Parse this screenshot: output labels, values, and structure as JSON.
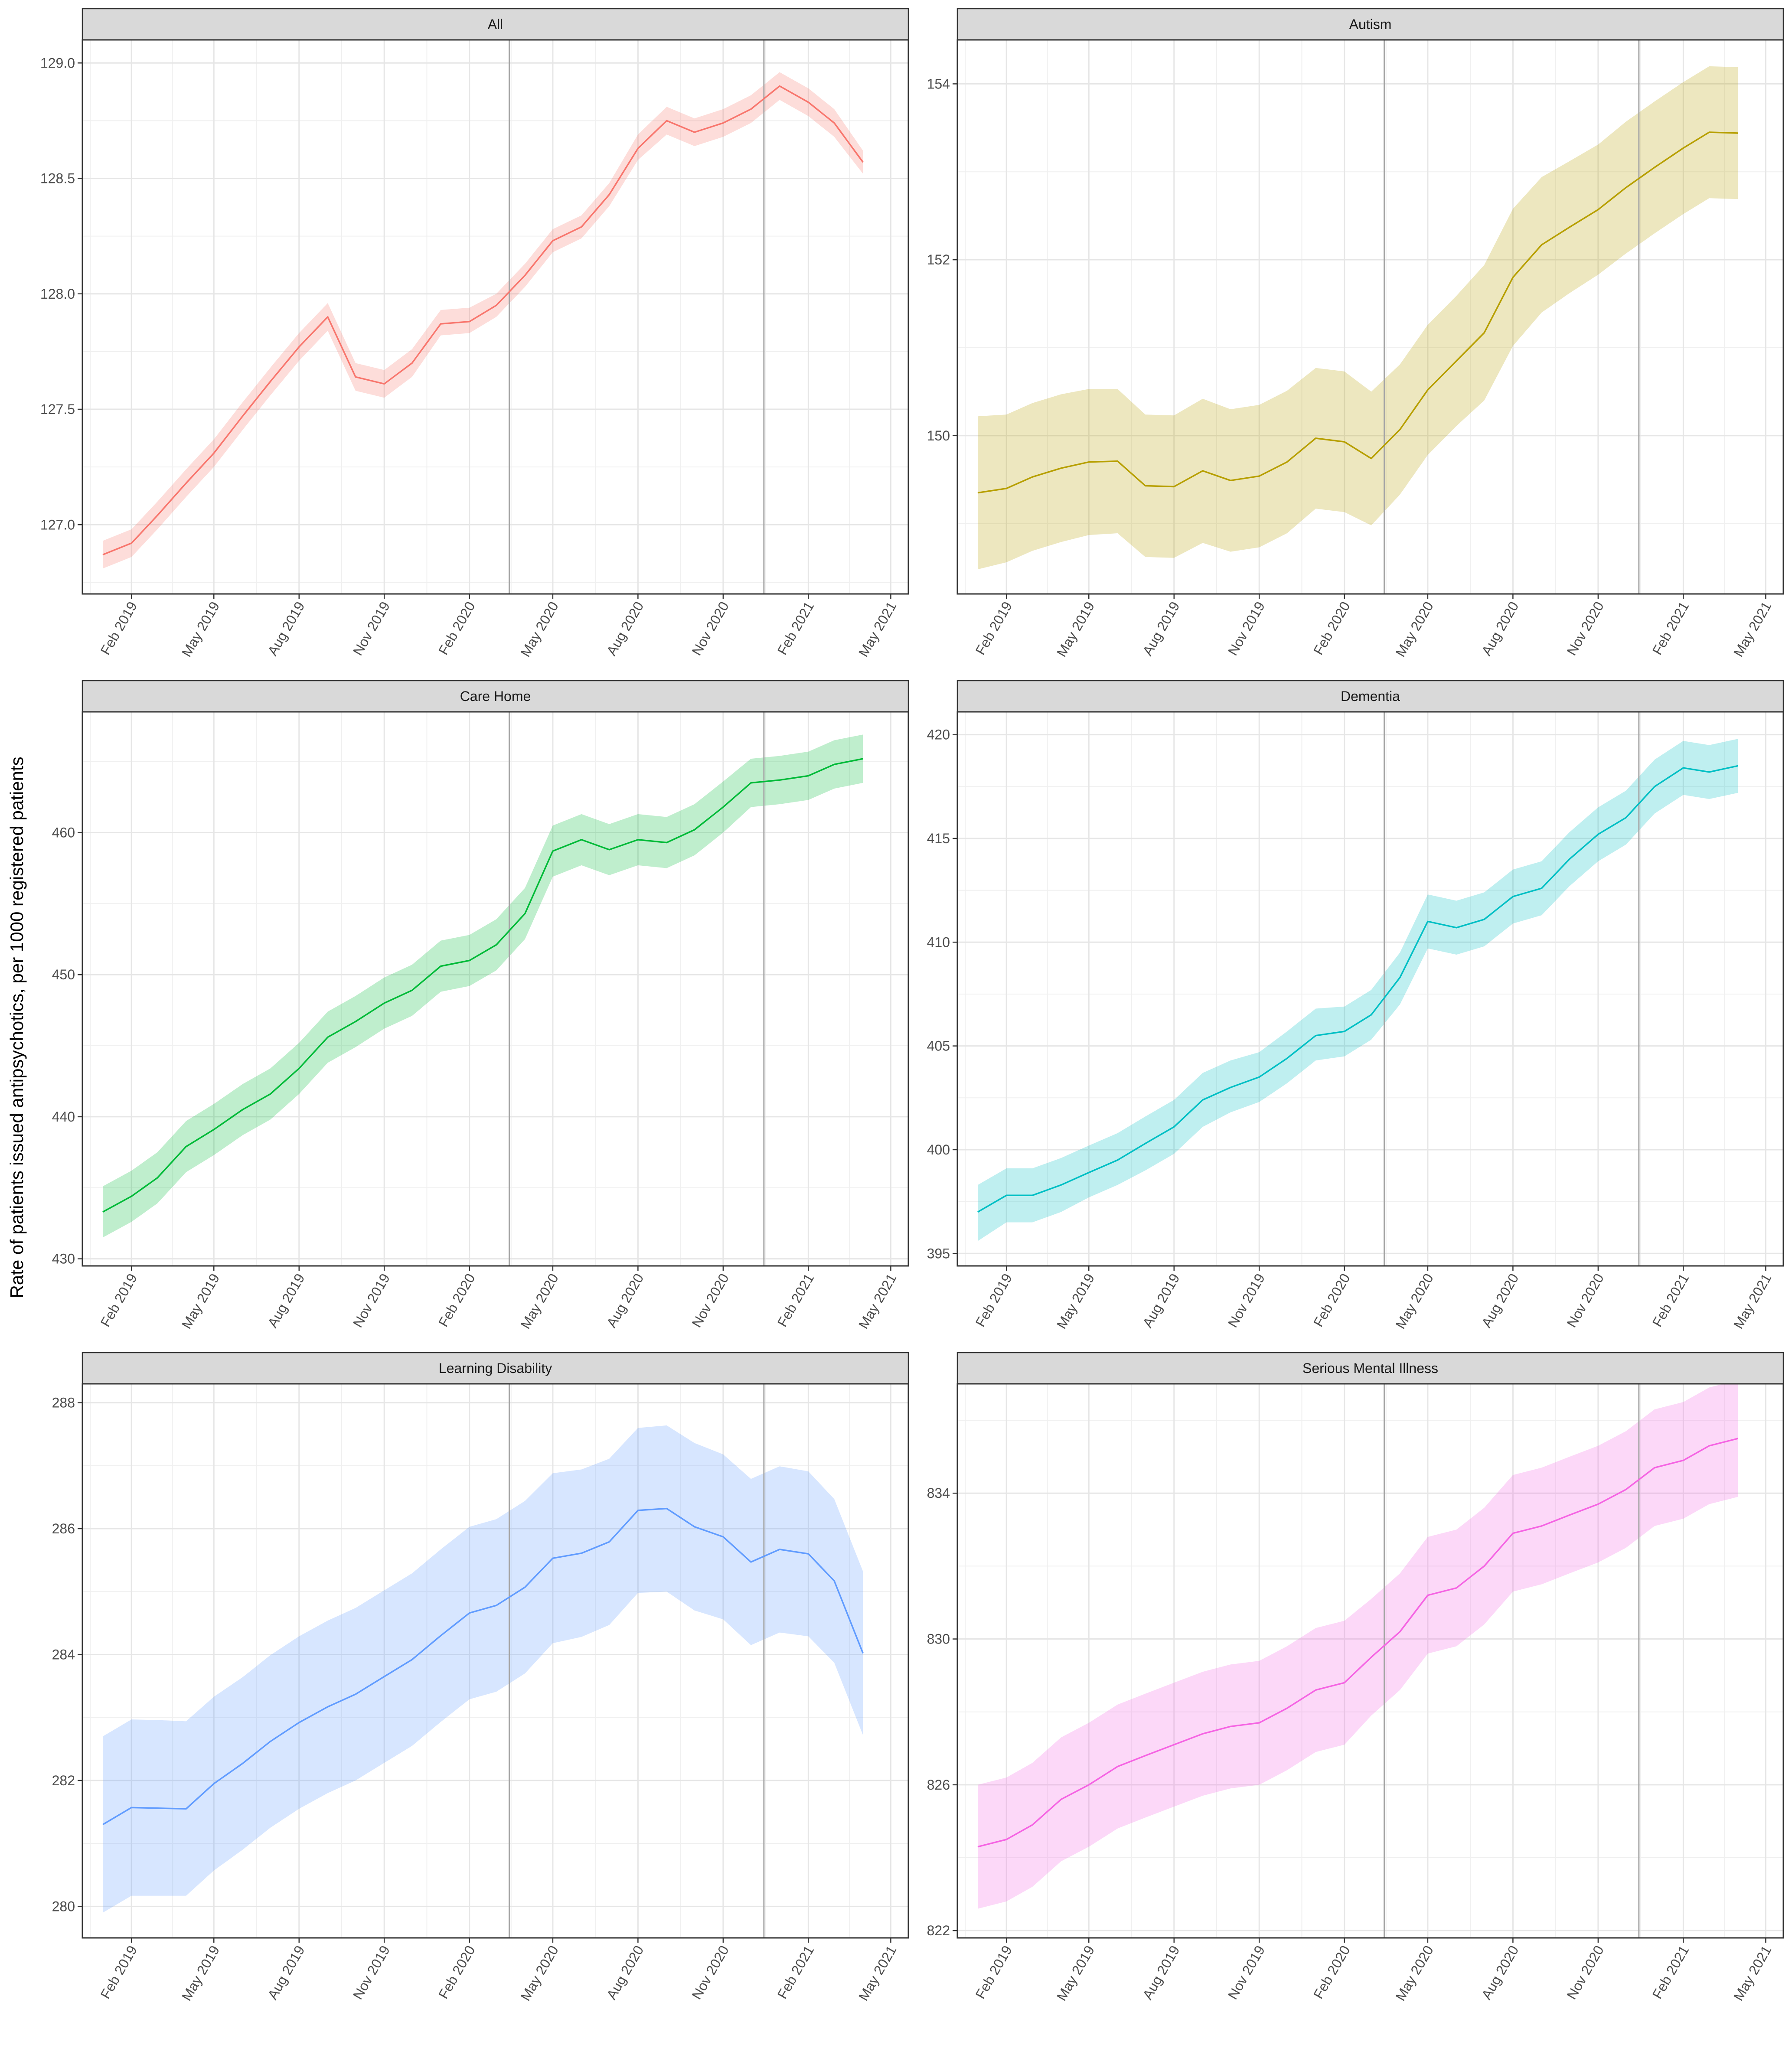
{
  "ylabel": "Rate of patients issued antipsychotics, per 1000 registered patients",
  "colors": {
    "All": "#F8766D",
    "Autism": "#B79F00",
    "Care Home": "#00BA38",
    "Dementia": "#00BFC4",
    "Learning Disability": "#619CFF",
    "Serious Mental Illness": "#F564E3"
  },
  "x_ticks": [
    "Feb 2019",
    "May 2019",
    "Aug 2019",
    "Nov 2019",
    "Feb 2020",
    "May 2020",
    "Aug 2020",
    "Nov 2020",
    "Feb 2021",
    "May 2021"
  ],
  "x_tick_dates": [
    "2019-02-01",
    "2019-05-01",
    "2019-08-01",
    "2019-11-01",
    "2020-02-01",
    "2020-05-01",
    "2020-08-01",
    "2020-11-01",
    "2021-02-01",
    "2021-05-01"
  ],
  "vlines": [
    "2020-03-15",
    "2020-12-15"
  ],
  "chart_data": [
    {
      "type": "line",
      "title": "All",
      "ylim": [
        126.7,
        129.1
      ],
      "yticks": [
        127.0,
        127.5,
        128.0,
        128.5,
        129.0
      ],
      "x": [
        "2019-01-01",
        "2019-02-01",
        "2019-03-01",
        "2019-04-01",
        "2019-05-01",
        "2019-06-01",
        "2019-07-01",
        "2019-08-01",
        "2019-09-01",
        "2019-10-01",
        "2019-11-01",
        "2019-12-01",
        "2020-01-01",
        "2020-02-01",
        "2020-03-01",
        "2020-04-01",
        "2020-05-01",
        "2020-06-01",
        "2020-07-01",
        "2020-08-01",
        "2020-09-01",
        "2020-10-01",
        "2020-11-01",
        "2020-12-01",
        "2021-01-01",
        "2021-02-01",
        "2021-03-01",
        "2021-04-01"
      ],
      "values": [
        126.87,
        126.92,
        127.04,
        127.18,
        127.31,
        127.47,
        127.62,
        127.77,
        127.9,
        127.64,
        127.61,
        127.7,
        127.87,
        127.88,
        127.95,
        128.08,
        128.23,
        128.29,
        128.43,
        128.63,
        128.75,
        128.7,
        128.74,
        128.8,
        128.9,
        128.83,
        128.74,
        128.57
      ],
      "lower": [
        126.81,
        126.86,
        126.98,
        127.12,
        127.25,
        127.41,
        127.56,
        127.71,
        127.84,
        127.58,
        127.55,
        127.64,
        127.82,
        127.83,
        127.9,
        128.03,
        128.18,
        128.24,
        128.38,
        128.58,
        128.69,
        128.64,
        128.68,
        128.74,
        128.84,
        128.77,
        128.68,
        128.52
      ],
      "upper": [
        126.93,
        126.98,
        127.1,
        127.24,
        127.37,
        127.53,
        127.68,
        127.83,
        127.96,
        127.7,
        127.67,
        127.76,
        127.93,
        127.94,
        128.0,
        128.13,
        128.28,
        128.34,
        128.48,
        128.69,
        128.81,
        128.76,
        128.8,
        128.86,
        128.96,
        128.89,
        128.8,
        128.62
      ]
    },
    {
      "type": "line",
      "title": "Autism",
      "ylim": [
        148.2,
        154.5
      ],
      "yticks": [
        150,
        152,
        154
      ],
      "x": [
        "2019-01-01",
        "2019-02-01",
        "2019-03-01",
        "2019-04-01",
        "2019-05-01",
        "2019-06-01",
        "2019-07-01",
        "2019-08-01",
        "2019-09-01",
        "2019-10-01",
        "2019-11-01",
        "2019-12-01",
        "2020-01-01",
        "2020-02-01",
        "2020-03-01",
        "2020-04-01",
        "2020-05-01",
        "2020-06-01",
        "2020-07-01",
        "2020-08-01",
        "2020-09-01",
        "2020-10-01",
        "2020-11-01",
        "2020-12-01",
        "2021-01-01",
        "2021-02-01",
        "2021-03-01",
        "2021-04-01"
      ],
      "values": [
        149.35,
        149.4,
        149.53,
        149.63,
        149.7,
        149.71,
        149.43,
        149.42,
        149.6,
        149.49,
        149.54,
        149.7,
        149.97,
        149.93,
        149.74,
        150.07,
        150.52,
        150.85,
        151.17,
        151.8,
        152.17,
        152.37,
        152.57,
        152.82,
        153.05,
        153.27,
        153.45,
        153.44
      ],
      "lower": [
        148.48,
        148.56,
        148.69,
        148.79,
        148.87,
        148.89,
        148.62,
        148.61,
        148.78,
        148.68,
        148.73,
        148.89,
        149.17,
        149.13,
        148.98,
        149.33,
        149.78,
        150.11,
        150.4,
        151.02,
        151.4,
        151.62,
        151.83,
        152.07,
        152.3,
        152.52,
        152.7,
        152.69
      ],
      "upper": [
        150.22,
        150.24,
        150.37,
        150.47,
        150.53,
        150.53,
        150.24,
        150.23,
        150.42,
        150.3,
        150.35,
        150.51,
        150.77,
        150.73,
        150.5,
        150.81,
        151.26,
        151.59,
        151.94,
        152.58,
        152.94,
        153.12,
        153.31,
        153.57,
        153.8,
        154.02,
        154.2,
        154.19
      ]
    },
    {
      "type": "line",
      "title": "Care Home",
      "ylim": [
        429.5,
        468.5
      ],
      "yticks": [
        430,
        440,
        450,
        460
      ],
      "x": [
        "2019-01-01",
        "2019-02-01",
        "2019-03-01",
        "2019-04-01",
        "2019-05-01",
        "2019-06-01",
        "2019-07-01",
        "2019-08-01",
        "2019-09-01",
        "2019-10-01",
        "2019-11-01",
        "2019-12-01",
        "2020-01-01",
        "2020-02-01",
        "2020-03-01",
        "2020-04-01",
        "2020-05-01",
        "2020-06-01",
        "2020-07-01",
        "2020-08-01",
        "2020-09-01",
        "2020-10-01",
        "2020-11-01",
        "2020-12-01",
        "2021-01-01",
        "2021-02-01",
        "2021-03-01",
        "2021-04-01"
      ],
      "values": [
        433.3,
        434.4,
        435.7,
        437.9,
        439.1,
        440.5,
        441.6,
        443.4,
        445.6,
        446.7,
        448.0,
        448.9,
        450.6,
        451.0,
        452.1,
        454.3,
        458.7,
        459.5,
        458.8,
        459.5,
        459.3,
        460.2,
        461.8,
        463.5,
        463.7,
        464.0,
        464.8,
        465.2
      ],
      "lower": [
        431.5,
        432.6,
        433.9,
        436.1,
        437.3,
        438.7,
        439.8,
        441.6,
        443.8,
        444.9,
        446.2,
        447.1,
        448.8,
        449.2,
        450.3,
        452.5,
        456.9,
        457.7,
        457.0,
        457.7,
        457.5,
        458.4,
        460.0,
        461.8,
        462.0,
        462.3,
        463.1,
        463.5
      ],
      "upper": [
        435.1,
        436.2,
        437.5,
        439.7,
        440.9,
        442.3,
        443.4,
        445.2,
        447.4,
        448.5,
        449.8,
        450.7,
        452.4,
        452.8,
        453.9,
        456.1,
        460.5,
        461.3,
        460.6,
        461.3,
        461.1,
        462.0,
        463.6,
        465.2,
        465.4,
        465.7,
        466.5,
        466.9
      ]
    },
    {
      "type": "line",
      "title": "Dementia",
      "ylim": [
        394.4,
        421.1
      ],
      "yticks": [
        395,
        400,
        405,
        410,
        415,
        420
      ],
      "x": [
        "2019-01-01",
        "2019-02-01",
        "2019-03-01",
        "2019-04-01",
        "2019-05-01",
        "2019-06-01",
        "2019-07-01",
        "2019-08-01",
        "2019-09-01",
        "2019-10-01",
        "2019-11-01",
        "2019-12-01",
        "2020-01-01",
        "2020-02-01",
        "2020-03-01",
        "2020-04-01",
        "2020-05-01",
        "2020-06-01",
        "2020-07-01",
        "2020-08-01",
        "2020-09-01",
        "2020-10-01",
        "2020-11-01",
        "2020-12-01",
        "2021-01-01",
        "2021-02-01",
        "2021-03-01",
        "2021-04-01"
      ],
      "values": [
        397.0,
        397.8,
        397.8,
        398.3,
        398.9,
        399.5,
        400.3,
        401.1,
        402.4,
        403.0,
        403.5,
        404.4,
        405.5,
        405.7,
        406.5,
        408.3,
        411.0,
        410.7,
        411.1,
        412.2,
        412.6,
        414.0,
        415.2,
        416.0,
        417.5,
        418.4,
        418.2,
        418.5
      ],
      "lower": [
        395.6,
        396.5,
        396.5,
        397.0,
        397.7,
        398.3,
        399.0,
        399.8,
        401.1,
        401.8,
        402.3,
        403.2,
        404.3,
        404.5,
        405.3,
        407.0,
        409.7,
        409.4,
        409.8,
        410.9,
        411.3,
        412.7,
        413.9,
        414.7,
        416.2,
        417.1,
        416.9,
        417.2
      ],
      "upper": [
        398.3,
        399.1,
        399.1,
        399.6,
        400.2,
        400.8,
        401.6,
        402.4,
        403.7,
        404.3,
        404.7,
        405.7,
        406.8,
        406.9,
        407.7,
        409.5,
        412.3,
        412.0,
        412.4,
        413.5,
        413.9,
        415.3,
        416.5,
        417.3,
        418.8,
        419.7,
        419.5,
        419.8
      ]
    },
    {
      "type": "line",
      "title": "Learning Disability",
      "ylim": [
        279.5,
        288.3
      ],
      "yticks": [
        280,
        282,
        284,
        286,
        288
      ],
      "x": [
        "2019-01-01",
        "2019-02-01",
        "2019-03-01",
        "2019-04-01",
        "2019-05-01",
        "2019-06-01",
        "2019-07-01",
        "2019-08-01",
        "2019-09-01",
        "2019-10-01",
        "2019-11-01",
        "2019-12-01",
        "2020-01-01",
        "2020-02-01",
        "2020-03-01",
        "2020-04-01",
        "2020-05-01",
        "2020-06-01",
        "2020-07-01",
        "2020-08-01",
        "2020-09-01",
        "2020-10-01",
        "2020-11-01",
        "2020-12-01",
        "2021-01-01",
        "2021-02-01",
        "2021-03-01",
        "2021-04-01"
      ],
      "values": [
        281.3,
        281.57,
        281.56,
        281.55,
        281.95,
        282.27,
        282.62,
        282.92,
        283.17,
        283.37,
        283.65,
        283.92,
        284.3,
        284.66,
        284.78,
        285.07,
        285.53,
        285.61,
        285.79,
        286.29,
        286.32,
        286.03,
        285.87,
        285.47,
        285.67,
        285.6,
        285.17,
        284.02
      ],
      "lower": [
        279.9,
        280.17,
        280.17,
        280.17,
        280.57,
        280.9,
        281.25,
        281.55,
        281.8,
        282.0,
        282.28,
        282.55,
        282.93,
        283.29,
        283.41,
        283.7,
        284.18,
        284.28,
        284.47,
        284.98,
        285.0,
        284.7,
        284.56,
        284.15,
        284.35,
        284.29,
        283.87,
        282.72
      ],
      "upper": [
        282.7,
        282.97,
        282.96,
        282.94,
        283.33,
        283.64,
        283.99,
        284.29,
        284.54,
        284.74,
        285.02,
        285.29,
        285.67,
        286.03,
        286.15,
        286.44,
        286.88,
        286.94,
        287.11,
        287.6,
        287.64,
        287.36,
        287.18,
        286.79,
        286.99,
        286.91,
        286.47,
        285.32
      ]
    },
    {
      "type": "line",
      "title": "Serious Mental Illness",
      "ylim": [
        821.8,
        837.0
      ],
      "yticks": [
        822,
        826,
        830,
        834
      ],
      "x": [
        "2019-01-01",
        "2019-02-01",
        "2019-03-01",
        "2019-04-01",
        "2019-05-01",
        "2019-06-01",
        "2019-07-01",
        "2019-08-01",
        "2019-09-01",
        "2019-10-01",
        "2019-11-01",
        "2019-12-01",
        "2020-01-01",
        "2020-02-01",
        "2020-03-01",
        "2020-04-01",
        "2020-05-01",
        "2020-06-01",
        "2020-07-01",
        "2020-08-01",
        "2020-09-01",
        "2020-10-01",
        "2020-11-01",
        "2020-12-01",
        "2021-01-01",
        "2021-02-01",
        "2021-03-01",
        "2021-04-01"
      ],
      "values": [
        824.3,
        824.5,
        824.9,
        825.6,
        826.0,
        826.5,
        826.8,
        827.1,
        827.4,
        827.6,
        827.7,
        828.1,
        828.6,
        828.8,
        829.5,
        830.2,
        831.2,
        831.4,
        832.0,
        832.9,
        833.1,
        833.4,
        833.7,
        834.1,
        834.7,
        834.9,
        835.3,
        835.5
      ],
      "lower": [
        822.6,
        822.8,
        823.2,
        823.9,
        824.3,
        824.8,
        825.1,
        825.4,
        825.7,
        825.9,
        826.0,
        826.4,
        826.9,
        827.1,
        827.9,
        828.6,
        829.6,
        829.8,
        830.4,
        831.3,
        831.5,
        831.8,
        832.1,
        832.5,
        833.1,
        833.3,
        833.7,
        833.9
      ],
      "upper": [
        826.0,
        826.2,
        826.6,
        827.3,
        827.7,
        828.2,
        828.5,
        828.8,
        829.1,
        829.3,
        829.4,
        829.8,
        830.3,
        830.5,
        831.1,
        831.8,
        832.8,
        833.0,
        833.6,
        834.5,
        834.7,
        835.0,
        835.3,
        835.7,
        836.3,
        836.5,
        836.9,
        837.1
      ]
    }
  ]
}
